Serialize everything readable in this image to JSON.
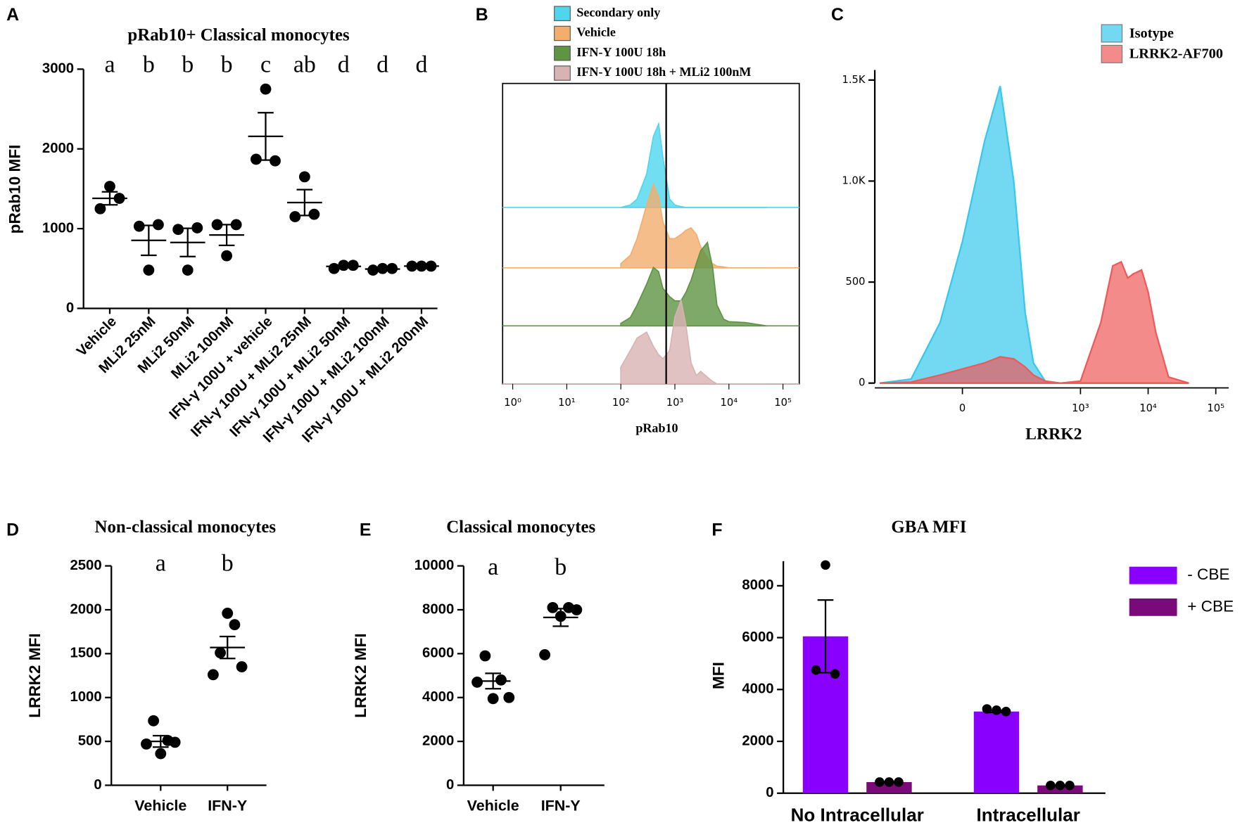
{
  "chart_data": [
    {
      "panel": "A",
      "type": "strip",
      "title": "pRab10+ Classical monocytes",
      "y_label": "pRab10 MFI",
      "categories": [
        "Vehicle",
        "MLi2 25nM",
        "MLi2 50nM",
        "MLi2 100nM",
        "IFN-γ 100U + vehicle",
        "IFN-γ 100U + MLi2 25nM",
        "IFN-γ 100U + MLi2 50nM",
        "IFN-γ 100U + MLi2 100nM",
        "IFN-γ 100U + MLi2 200nM"
      ],
      "annotations": [
        "a",
        "b",
        "b",
        "b",
        "c",
        "ab",
        "d",
        "d",
        "d"
      ],
      "points": [
        [
          1250,
          1530,
          1380
        ],
        [
          1030,
          480,
          1050
        ],
        [
          990,
          480,
          1010
        ],
        [
          1050,
          660,
          1050
        ],
        [
          1870,
          2750,
          1850
        ],
        [
          1150,
          1650,
          1180
        ],
        [
          500,
          540,
          540
        ],
        [
          480,
          500,
          500
        ],
        [
          530,
          530,
          530
        ]
      ],
      "means": [
        1380,
        853,
        827,
        920,
        2157,
        1327,
        527,
        493,
        530
      ],
      "sems": [
        82,
        187,
        177,
        130,
        297,
        162,
        13,
        7,
        3
      ],
      "color": "#000000",
      "ylim": [
        0,
        3000
      ],
      "yticks": [
        0,
        1000,
        2000,
        3000
      ]
    },
    {
      "panel": "B",
      "type": "histogram-overlay",
      "x_label": "pRab10",
      "xscale": "log",
      "x": [
        100,
        150,
        200,
        300,
        400,
        500,
        600,
        800,
        1000,
        1300,
        1600,
        2000,
        2500,
        3000,
        4000,
        5000,
        6000,
        8000,
        10000,
        20000,
        50000
      ],
      "series": [
        {
          "name": "Secondary only",
          "color": "#4fd6ee",
          "values": [
            0,
            3,
            10,
            40,
            85,
            100,
            60,
            10,
            3,
            1,
            0,
            0,
            0,
            0,
            0,
            0,
            0,
            0,
            0,
            0,
            0
          ]
        },
        {
          "name": "Vehicle",
          "color": "#f3ad6c",
          "values": [
            5,
            15,
            35,
            75,
            100,
            85,
            55,
            35,
            35,
            40,
            45,
            48,
            40,
            25,
            12,
            5,
            2,
            1,
            0,
            0,
            0
          ]
        },
        {
          "name": "IFN-Y 100U 18h",
          "color": "#5f9444",
          "values": [
            3,
            10,
            25,
            50,
            70,
            65,
            45,
            35,
            30,
            30,
            40,
            55,
            75,
            90,
            100,
            70,
            25,
            8,
            5,
            4,
            0
          ]
        },
        {
          "name": "IFN-Y 100U 18h + MLi2 100nM",
          "color": "#d9b3b3",
          "values": [
            20,
            40,
            55,
            62,
            45,
            35,
            30,
            40,
            80,
            100,
            70,
            25,
            10,
            15,
            8,
            3,
            0,
            0,
            0,
            0,
            0
          ]
        }
      ],
      "gate": 690,
      "xlim": [
        0.65,
        200000
      ],
      "xticks": [
        {
          "value": 1,
          "label": "10⁰"
        },
        {
          "value": 10,
          "label": "10¹"
        },
        {
          "value": 100,
          "label": "10²"
        },
        {
          "value": 1000,
          "label": "10³"
        },
        {
          "value": 10000,
          "label": "10⁴"
        },
        {
          "value": 100000,
          "label": "10⁵"
        }
      ]
    },
    {
      "panel": "C",
      "type": "area",
      "x_label": "LRRK2",
      "xscale": "asinh",
      "asinh_cofactor": 36,
      "x": [
        -300,
        -100,
        -30,
        0,
        30,
        60,
        100,
        150,
        200,
        300,
        500,
        1000,
        2000,
        3000,
        4000,
        5000,
        6000,
        8000,
        10000,
        13000,
        20000,
        40000
      ],
      "series": [
        {
          "name": "Isotype",
          "color": "#37c8ec",
          "values": [
            0,
            20,
            300,
            700,
            1200,
            1470,
            1000,
            350,
            100,
            10,
            0,
            0,
            0,
            0,
            0,
            0,
            0,
            0,
            0,
            0,
            0,
            0
          ]
        },
        {
          "name": "LRRK2-AF700",
          "color": "#ee5a5a",
          "values": [
            0,
            5,
            40,
            70,
            100,
            130,
            120,
            80,
            40,
            10,
            0,
            10,
            300,
            580,
            600,
            520,
            540,
            560,
            450,
            250,
            30,
            0
          ]
        }
      ],
      "xlim": [
        -354,
        155000
      ],
      "xticks": [
        0,
        {
          "value": 1000,
          "label": "10³"
        },
        {
          "value": 10000,
          "label": "10⁴"
        },
        {
          "value": 100000,
          "label": "10⁵"
        }
      ],
      "ylim": [
        0,
        1550
      ],
      "yticks": [
        0,
        500,
        {
          "value": 1000,
          "label": "1.0K"
        },
        {
          "value": 1500,
          "label": "1.5K"
        }
      ]
    },
    {
      "panel": "D",
      "type": "strip",
      "title": "Non-classical monocytes",
      "y_label": "LRRK2 MFI",
      "categories": [
        "Vehicle",
        "IFN-Y"
      ],
      "annotations": [
        "a",
        "b"
      ],
      "points": [
        [
          470,
          735,
          360,
          510,
          490
        ],
        [
          1260,
          1510,
          1960,
          1830,
          1350
        ]
      ],
      "means": [
        500,
        1570
      ],
      "sems": [
        65,
        125
      ],
      "color": "#000000",
      "ylim": [
        0,
        2500
      ],
      "yticks": [
        0,
        500,
        1000,
        1500,
        2000,
        2500
      ]
    },
    {
      "panel": "E",
      "type": "strip",
      "title": "Classical monocytes",
      "y_label": "LRRK2 MFI",
      "categories": [
        "Vehicle",
        "IFN-Y"
      ],
      "annotations": [
        "a",
        "b"
      ],
      "points": [
        [
          4700,
          5900,
          3950,
          4800,
          4000
        ],
        [
          5950,
          8100,
          7700,
          8100,
          8000
        ]
      ],
      "means": [
        4750,
        7650
      ],
      "sems": [
        350,
        400
      ],
      "color": "#000000",
      "ylim": [
        0,
        10000
      ],
      "yticks": [
        0,
        2000,
        4000,
        6000,
        8000,
        10000
      ]
    },
    {
      "panel": "F",
      "type": "bar",
      "title": "GBA MFI",
      "y_label": "MFI",
      "categories": [
        "No Intracellular",
        "Intracellular"
      ],
      "series": [
        {
          "name": "- CBE",
          "color": "#8a00ff",
          "values": [
            6050,
            3150
          ],
          "sems": [
            1400,
            35
          ],
          "points": [
            [
              4750,
              8800,
              4600
            ],
            [
              3250,
              3200,
              3150
            ]
          ]
        },
        {
          "name": "+ CBE",
          "color": "#7a0a7a",
          "values": [
            430,
            300
          ],
          "sems": [
            10,
            10
          ],
          "points": [
            [
              430,
              430,
              430
            ],
            [
              300,
              300,
              300
            ]
          ]
        }
      ],
      "ylim": [
        0,
        8950
      ],
      "yticks": [
        0,
        2000,
        4000,
        6000,
        8000
      ]
    }
  ]
}
